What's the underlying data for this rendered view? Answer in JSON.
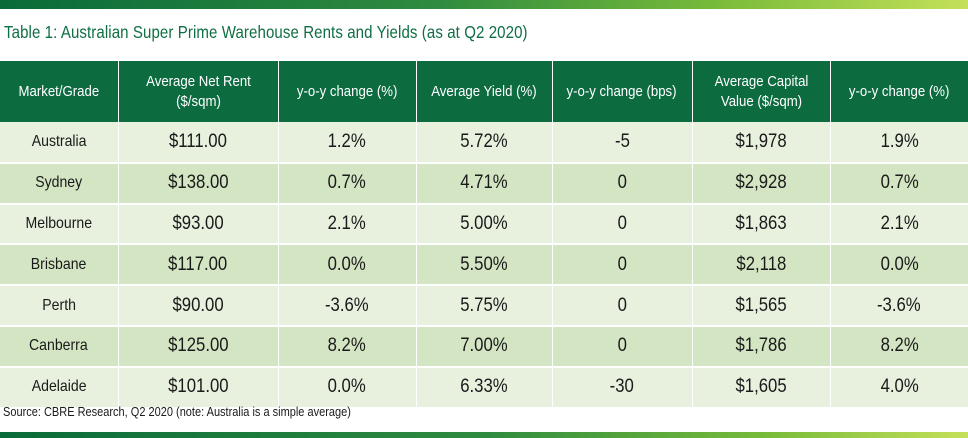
{
  "title": "Table 1: Australian Super Prime Warehouse Rents and Yields (as at Q2 2020)",
  "columns": [
    "Market/Grade",
    "Average Net Rent ($/sqm)",
    "y-o-y change (%)",
    "Average Yield (%)",
    "y-o-y change (bps)",
    "Average Capital Value ($/sqm)",
    "y-o-y change (%)"
  ],
  "rows": [
    [
      "Australia",
      "$111.00",
      "1.2%",
      "5.72%",
      "-5",
      "$1,978",
      "1.9%"
    ],
    [
      "Sydney",
      "$138.00",
      "0.7%",
      "4.71%",
      "0",
      "$2,928",
      "0.7%"
    ],
    [
      "Melbourne",
      "$93.00",
      "2.1%",
      "5.00%",
      "0",
      "$1,863",
      "2.1%"
    ],
    [
      "Brisbane",
      "$117.00",
      "0.0%",
      "5.50%",
      "0",
      "$2,118",
      "0.0%"
    ],
    [
      "Perth",
      "$90.00",
      "-3.6%",
      "5.75%",
      "0",
      "$1,565",
      "-3.6%"
    ],
    [
      "Canberra",
      "$125.00",
      "8.2%",
      "7.00%",
      "0",
      "$1,786",
      "8.2%"
    ],
    [
      "Adelaide",
      "$101.00",
      "0.0%",
      "6.33%",
      "-30",
      "$1,605",
      "4.0%"
    ]
  ],
  "footnote": "Source: CBRE Research, Q2 2020 (note: Australia is a simple average)",
  "colors": {
    "header_bg": "#0d6b40",
    "title": "#0f6e43",
    "row_light": "#e7f1de",
    "row_dark": "#d3e5c2"
  }
}
